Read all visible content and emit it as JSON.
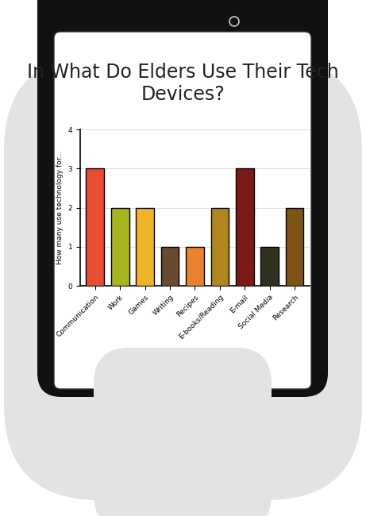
{
  "chart_data": {
    "type": "bar",
    "title": "In What Do Elders Use Their Tech Devices?",
    "y_label": "How many use technology for...",
    "categories": [
      "Communication",
      "Work",
      "Games",
      "Writing",
      "Recipes",
      "E-books/Reading",
      "E-mail",
      "Social Media",
      "Research"
    ],
    "values": [
      3,
      2,
      2,
      1,
      1,
      2,
      3,
      1,
      2
    ],
    "colors": [
      "#e84c32",
      "#a8b51f",
      "#f0b429",
      "#6b4a33",
      "#e8822e",
      "#b0861f",
      "#7d1a14",
      "#2e3320",
      "#7d5416"
    ],
    "ylim": [
      0,
      4
    ],
    "yticks": [
      0,
      1,
      2,
      3,
      4
    ],
    "grid": true
  }
}
